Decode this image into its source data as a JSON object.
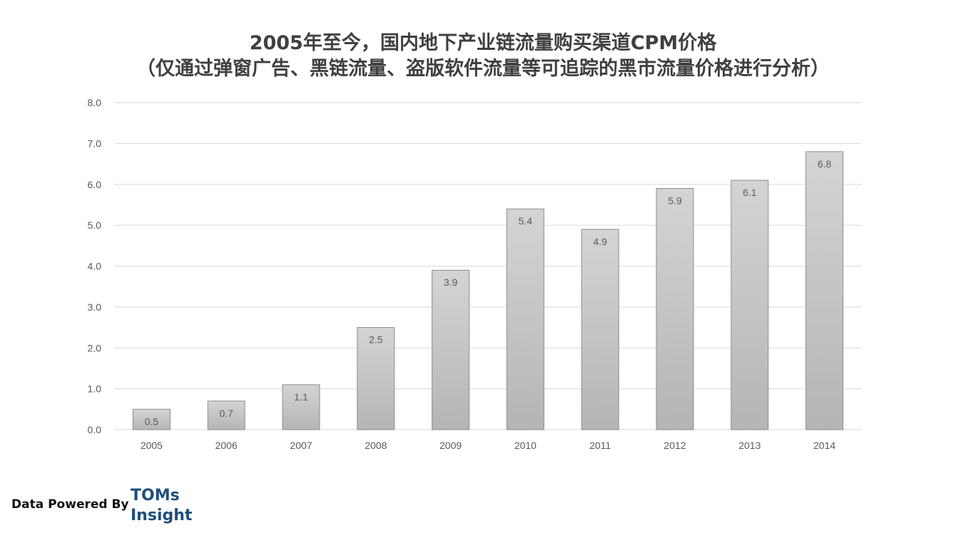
{
  "title_line1": "2005年至今，国内地下产业链流量购买渠道CPM价格",
  "title_line2": "（仅通过弹窗广告、黑链流量、盗版软件流量等可追踪的黑市流量价格进行分析）",
  "footer": {
    "label": "Data Powered By",
    "brand_line1": "TOMs",
    "brand_line2": "Insight"
  },
  "colors": {
    "bar_top": "#d4d4d4",
    "bar_bottom": "#b5b5b5",
    "bar_stroke": "#8c8c8c",
    "grid": "#d9d9d9",
    "text": "#595959",
    "brand": "#1f4e79"
  },
  "chart_data": {
    "type": "bar",
    "categories": [
      "2005",
      "2006",
      "2007",
      "2008",
      "2009",
      "2010",
      "2011",
      "2012",
      "2013",
      "2014"
    ],
    "values": [
      0.5,
      0.7,
      1.1,
      2.5,
      3.9,
      5.4,
      4.9,
      5.9,
      6.1,
      6.8
    ],
    "value_labels": [
      "0.5",
      "0.7",
      "1.1",
      "2.5",
      "3.9",
      "5.4",
      "4.9",
      "5.9",
      "6.1",
      "6.8"
    ],
    "yticks": [
      "0.0",
      "1.0",
      "2.0",
      "3.0",
      "4.0",
      "5.0",
      "6.0",
      "7.0",
      "8.0"
    ],
    "ylim": [
      0,
      8
    ],
    "grid": true,
    "legend": false
  }
}
